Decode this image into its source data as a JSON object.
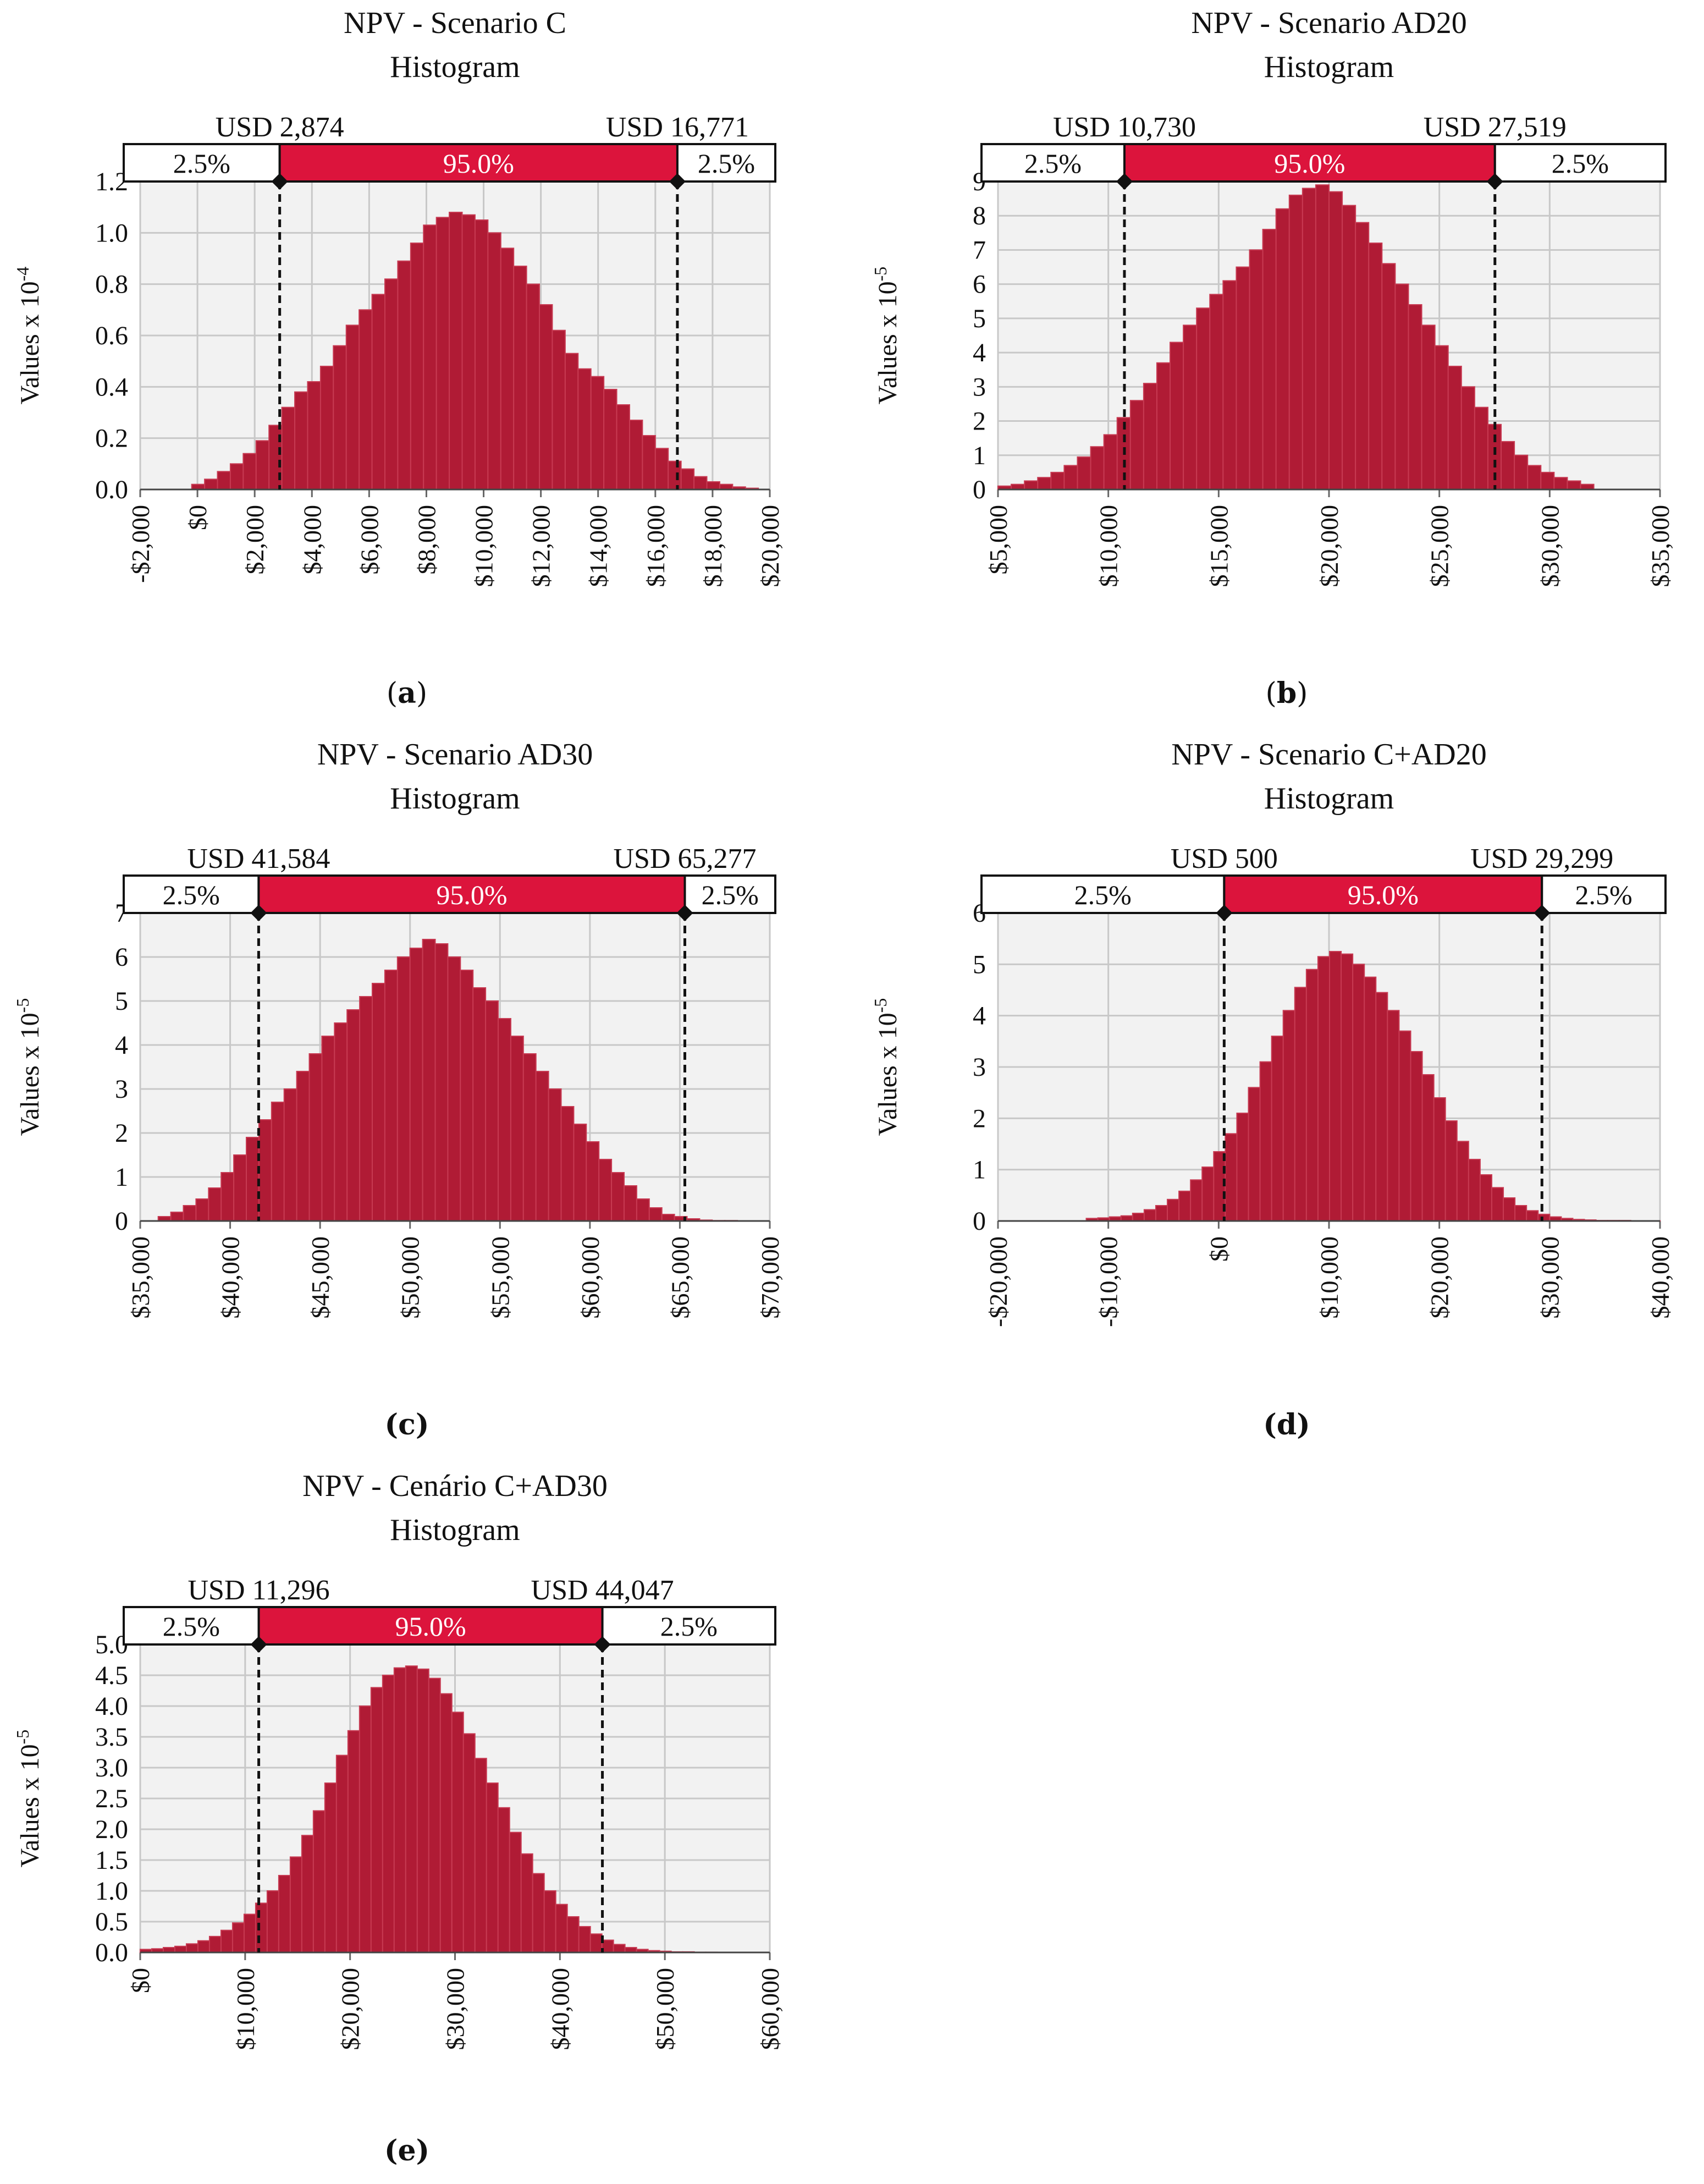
{
  "figure": {
    "bar_color": "#b01b35",
    "band_color": "#dc143c",
    "grid_color": "#c8c8c8",
    "plot_bg": "#f2f2f2"
  },
  "chart_data": [
    {
      "id": "a",
      "type": "bar",
      "title": "NPV - Scenario C",
      "subtitle": "Histogram",
      "caption": "a",
      "ylabel": "Values x 10",
      "yexp": "-4",
      "xlim": [
        -2000,
        20000
      ],
      "ylim": [
        0,
        1.2
      ],
      "xticks": [
        -2000,
        0,
        2000,
        4000,
        6000,
        8000,
        10000,
        12000,
        14000,
        16000,
        18000,
        20000
      ],
      "xtick_labels": [
        "-$2,000",
        "$0",
        "$2,000",
        "$4,000",
        "$6,000",
        "$8,000",
        "$10,000",
        "$12,000",
        "$14,000",
        "$16,000",
        "$18,000",
        "$20,000"
      ],
      "yticks": [
        0,
        0.2,
        0.4,
        0.6,
        0.8,
        1.0,
        1.2
      ],
      "ytick_labels": [
        "0.0",
        "0.2",
        "0.4",
        "0.6",
        "0.8",
        "1.0",
        "1.2"
      ],
      "lower": 2874,
      "upper": 16771,
      "lower_label": "USD 2,874",
      "upper_label": "USD 16,771",
      "left_pct": "2.5%",
      "mid_pct": "95.0%",
      "right_pct": "2.5%",
      "bin_start": -200,
      "bin_width": 450,
      "values": [
        0.02,
        0.04,
        0.07,
        0.1,
        0.14,
        0.19,
        0.25,
        0.32,
        0.38,
        0.42,
        0.48,
        0.56,
        0.64,
        0.7,
        0.76,
        0.82,
        0.89,
        0.96,
        1.03,
        1.06,
        1.08,
        1.07,
        1.05,
        1.0,
        0.94,
        0.87,
        0.8,
        0.72,
        0.62,
        0.53,
        0.47,
        0.44,
        0.39,
        0.33,
        0.27,
        0.21,
        0.16,
        0.11,
        0.08,
        0.05,
        0.03,
        0.02,
        0.01,
        0.005
      ]
    },
    {
      "id": "b",
      "type": "bar",
      "title": "NPV - Scenario AD20",
      "subtitle": "Histogram",
      "caption": "b",
      "ylabel": "Values x 10",
      "yexp": "-5",
      "xlim": [
        5000,
        35000
      ],
      "ylim": [
        0,
        9
      ],
      "xticks": [
        5000,
        10000,
        15000,
        20000,
        25000,
        30000,
        35000
      ],
      "xtick_labels": [
        "$5,000",
        "$10,000",
        "$15,000",
        "$20,000",
        "$25,000",
        "$30,000",
        "$35,000"
      ],
      "yticks": [
        0,
        1,
        2,
        3,
        4,
        5,
        6,
        7,
        8,
        9
      ],
      "ytick_labels": [
        "0",
        "1",
        "2",
        "3",
        "4",
        "5",
        "6",
        "7",
        "8",
        "9"
      ],
      "lower": 10730,
      "upper": 27519,
      "lower_label": "USD 10,730",
      "upper_label": "USD 27,519",
      "left_pct": "2.5%",
      "mid_pct": "95.0%",
      "right_pct": "2.5%",
      "bin_start": 5000,
      "bin_width": 600,
      "values": [
        0.1,
        0.15,
        0.25,
        0.35,
        0.5,
        0.7,
        0.95,
        1.25,
        1.6,
        2.1,
        2.6,
        3.1,
        3.7,
        4.3,
        4.8,
        5.3,
        5.7,
        6.1,
        6.5,
        7.0,
        7.6,
        8.2,
        8.6,
        8.8,
        8.9,
        8.7,
        8.3,
        7.8,
        7.2,
        6.6,
        6.0,
        5.4,
        4.8,
        4.2,
        3.6,
        3.0,
        2.4,
        1.9,
        1.4,
        1.0,
        0.7,
        0.5,
        0.35,
        0.25,
        0.15
      ]
    },
    {
      "id": "c",
      "type": "bar",
      "title": "NPV - Scenario AD30",
      "subtitle": "Histogram",
      "caption": "c",
      "ylabel": "Values x 10",
      "yexp": "-5",
      "xlim": [
        35000,
        70000
      ],
      "ylim": [
        0,
        7
      ],
      "xticks": [
        35000,
        40000,
        45000,
        50000,
        55000,
        60000,
        65000,
        70000
      ],
      "xtick_labels": [
        "$35,000",
        "$40,000",
        "$45,000",
        "$50,000",
        "$55,000",
        "$60,000",
        "$65,000",
        "$70,000"
      ],
      "yticks": [
        0,
        1,
        2,
        3,
        4,
        5,
        6,
        7
      ],
      "ytick_labels": [
        "0",
        "1",
        "2",
        "3",
        "4",
        "5",
        "6",
        "7"
      ],
      "lower": 41584,
      "upper": 65277,
      "lower_label": "USD 41,584",
      "upper_label": "USD 65,277",
      "left_pct": "2.5%",
      "mid_pct": "95.0%",
      "right_pct": "2.5%",
      "bin_start": 36000,
      "bin_width": 700,
      "values": [
        0.1,
        0.2,
        0.35,
        0.5,
        0.75,
        1.1,
        1.5,
        1.9,
        2.3,
        2.7,
        3.0,
        3.4,
        3.8,
        4.2,
        4.5,
        4.8,
        5.1,
        5.4,
        5.7,
        6.0,
        6.2,
        6.4,
        6.3,
        6.0,
        5.7,
        5.3,
        5.0,
        4.6,
        4.2,
        3.8,
        3.4,
        3.0,
        2.6,
        2.2,
        1.8,
        1.4,
        1.1,
        0.8,
        0.5,
        0.3,
        0.15,
        0.1,
        0.05,
        0.02,
        0.01,
        0.01,
        0.0,
        0.0
      ]
    },
    {
      "id": "d",
      "type": "bar",
      "title": "NPV - Scenario C+AD20",
      "subtitle": "Histogram",
      "caption": "d",
      "ylabel": "Values x 10",
      "yexp": "-5",
      "xlim": [
        -20000,
        40000
      ],
      "ylim": [
        0,
        6
      ],
      "xticks": [
        -20000,
        -10000,
        0,
        10000,
        20000,
        30000,
        40000
      ],
      "xtick_labels": [
        "-$20,000",
        "-$10,000",
        "$0",
        "$10,000",
        "$20,000",
        "$30,000",
        "$40,000"
      ],
      "yticks": [
        0,
        1,
        2,
        3,
        4,
        5,
        6
      ],
      "ytick_labels": [
        "0",
        "1",
        "2",
        "3",
        "4",
        "5",
        "6"
      ],
      "lower": 500,
      "upper": 29299,
      "lower_label": "USD 500",
      "upper_label": "USD 29,299",
      "left_pct": "2.5%",
      "mid_pct": "95.0%",
      "right_pct": "2.5%",
      "bin_start": -12000,
      "bin_width": 1050,
      "values": [
        0.05,
        0.06,
        0.08,
        0.1,
        0.15,
        0.22,
        0.3,
        0.42,
        0.58,
        0.8,
        1.05,
        1.35,
        1.7,
        2.1,
        2.6,
        3.1,
        3.6,
        4.1,
        4.55,
        4.9,
        5.15,
        5.25,
        5.2,
        5.0,
        4.75,
        4.45,
        4.1,
        3.7,
        3.3,
        2.85,
        2.4,
        1.95,
        1.55,
        1.2,
        0.9,
        0.65,
        0.45,
        0.3,
        0.2,
        0.13,
        0.08,
        0.05,
        0.03,
        0.02,
        0.01,
        0.01,
        0.01,
        0.005,
        0.005,
        0.005
      ]
    },
    {
      "id": "e",
      "type": "bar",
      "title": "NPV - Cenário C+AD30",
      "subtitle": "Histogram",
      "caption": "e",
      "ylabel": "Values x 10",
      "yexp": "-5",
      "xlim": [
        0,
        60000
      ],
      "ylim": [
        0,
        5
      ],
      "xticks": [
        0,
        10000,
        20000,
        30000,
        40000,
        50000,
        60000
      ],
      "xtick_labels": [
        "$0",
        "$10,000",
        "$20,000",
        "$30,000",
        "$40,000",
        "$50,000",
        "$60,000"
      ],
      "yticks": [
        0,
        0.5,
        1.0,
        1.5,
        2.0,
        2.5,
        3.0,
        3.5,
        4.0,
        4.5,
        5.0
      ],
      "ytick_labels": [
        "0.0",
        "0.5",
        "1.0",
        "1.5",
        "2.0",
        "2.5",
        "3.0",
        "3.5",
        "4.0",
        "4.5",
        "5.0"
      ],
      "lower": 11296,
      "upper": 44047,
      "lower_label": "USD 11,296",
      "upper_label": "USD 44,047",
      "left_pct": "2.5%",
      "mid_pct": "95.0%",
      "right_pct": "2.5%",
      "bin_start": 0,
      "bin_width": 1100,
      "values": [
        0.05,
        0.06,
        0.08,
        0.1,
        0.14,
        0.19,
        0.26,
        0.36,
        0.48,
        0.62,
        0.8,
        1.0,
        1.25,
        1.55,
        1.9,
        2.3,
        2.75,
        3.2,
        3.6,
        4.0,
        4.3,
        4.5,
        4.62,
        4.65,
        4.6,
        4.45,
        4.2,
        3.9,
        3.55,
        3.15,
        2.75,
        2.35,
        1.95,
        1.6,
        1.28,
        1.0,
        0.78,
        0.58,
        0.42,
        0.3,
        0.2,
        0.13,
        0.08,
        0.05,
        0.03,
        0.02,
        0.01,
        0.01,
        0.005,
        0.005
      ]
    }
  ]
}
